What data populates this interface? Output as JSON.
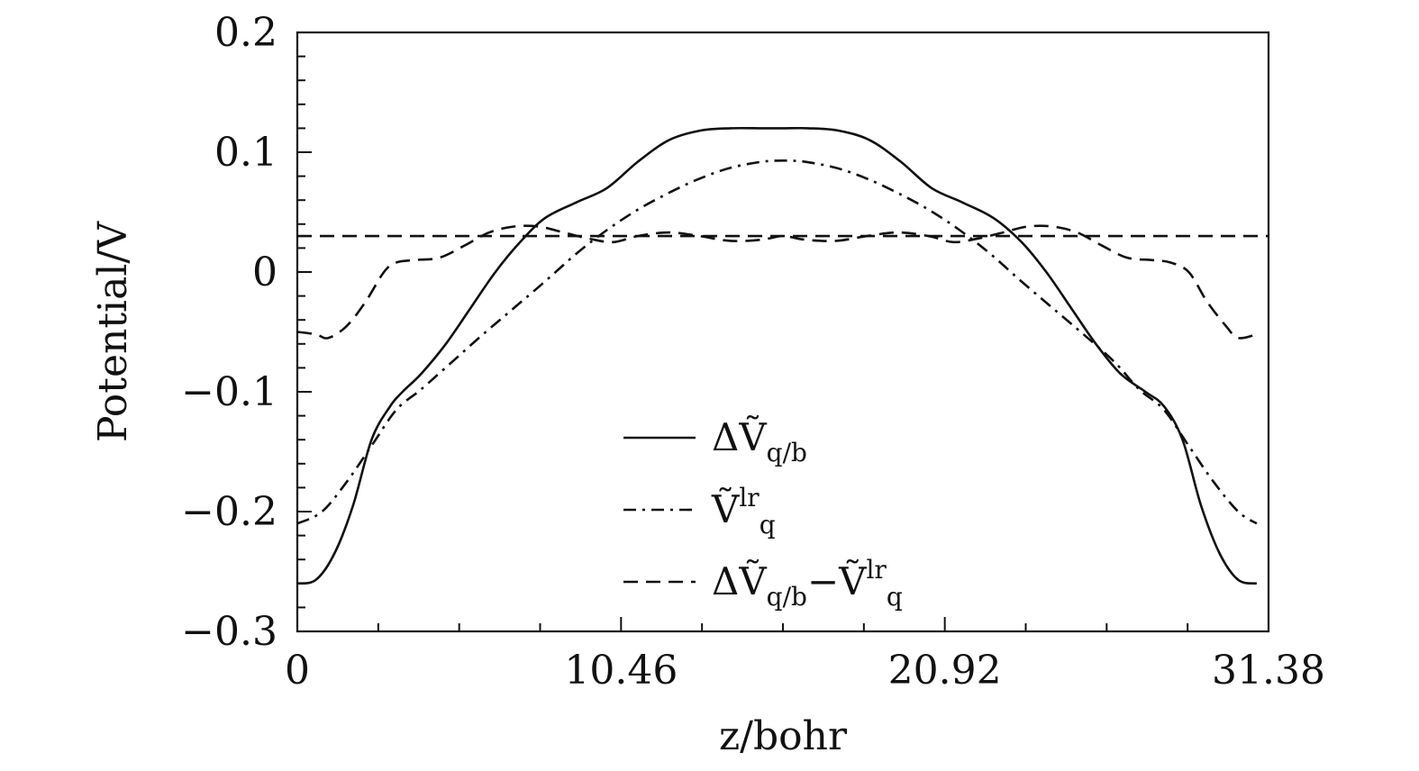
{
  "chart_data": {
    "type": "line",
    "xlabel": "z/bohr",
    "ylabel": "Potential/V",
    "xlim": [
      0,
      31.38
    ],
    "ylim": [
      -0.3,
      0.2
    ],
    "x_ticks": [
      0,
      10.46,
      20.92,
      31.38
    ],
    "x_tick_labels": [
      "0",
      "10.46",
      "20.92",
      "31.38"
    ],
    "y_ticks": [
      -0.3,
      -0.2,
      -0.1,
      0,
      0.1,
      0.2
    ],
    "y_tick_labels": [
      "−0.3",
      "−0.2",
      "−0.1",
      "0",
      "0.1",
      "0.2"
    ],
    "grid": false,
    "legend_position": "bottom-center",
    "series": [
      {
        "name": "ΔṼ_q/b",
        "style": "solid",
        "x": [
          0,
          0.6,
          1.2,
          1.8,
          2.4,
          3.0,
          3.4,
          4.0,
          4.8,
          5.6,
          6.4,
          7.2,
          8.0,
          9.0,
          10.0,
          11.0,
          12.0,
          13.0,
          14.0,
          15.0,
          15.69,
          16.5,
          17.5,
          18.5,
          19.5,
          20.5,
          21.5,
          22.5,
          23.4,
          24.2,
          25.0,
          25.8,
          26.6,
          27.4,
          28.0,
          28.6,
          29.2,
          29.8,
          30.4,
          31.0
        ],
        "y": [
          -0.26,
          -0.257,
          -0.235,
          -0.195,
          -0.14,
          -0.112,
          -0.1,
          -0.085,
          -0.06,
          -0.03,
          0.0,
          0.025,
          0.045,
          0.058,
          0.07,
          0.092,
          0.11,
          0.118,
          0.12,
          0.12,
          0.12,
          0.12,
          0.118,
          0.11,
          0.092,
          0.07,
          0.058,
          0.045,
          0.025,
          0.0,
          -0.03,
          -0.06,
          -0.085,
          -0.1,
          -0.112,
          -0.14,
          -0.195,
          -0.235,
          -0.257,
          -0.26
        ]
      },
      {
        "name": "Ṽ_q^lr",
        "style": "dashdot",
        "x": [
          0,
          0.8,
          1.6,
          2.4,
          3.2,
          4.0,
          5.0,
          6.0,
          7.0,
          8.0,
          9.0,
          10.0,
          11.0,
          12.0,
          13.0,
          14.0,
          15.0,
          15.69,
          16.4,
          17.4,
          18.4,
          19.4,
          20.4,
          21.4,
          22.4,
          23.4,
          24.4,
          25.4,
          26.4,
          27.2,
          28.0,
          28.8,
          29.6,
          30.4,
          31.0
        ],
        "y": [
          -0.21,
          -0.2,
          -0.175,
          -0.145,
          -0.115,
          -0.098,
          -0.075,
          -0.052,
          -0.03,
          -0.008,
          0.015,
          0.035,
          0.052,
          0.066,
          0.078,
          0.087,
          0.092,
          0.093,
          0.092,
          0.087,
          0.078,
          0.066,
          0.052,
          0.035,
          0.015,
          -0.008,
          -0.03,
          -0.052,
          -0.075,
          -0.098,
          -0.115,
          -0.145,
          -0.175,
          -0.2,
          -0.21
        ]
      },
      {
        "name": "ΔṼ_q/b − Ṽ_q^lr",
        "style": "dashed",
        "x": [
          0,
          0.6,
          1.0,
          1.6,
          2.2,
          2.8,
          3.2,
          3.8,
          4.6,
          5.4,
          6.2,
          7.0,
          7.8,
          8.6,
          9.4,
          10.2,
          11.0,
          12.0,
          13.0,
          14.0,
          15.0,
          15.69,
          16.4,
          17.4,
          18.4,
          19.4,
          20.4,
          21.2,
          22.0,
          22.8,
          23.6,
          24.4,
          25.2,
          26.0,
          26.8,
          27.6,
          28.2,
          28.8,
          29.4,
          30.0,
          30.4,
          31.0
        ],
        "y": [
          -0.05,
          -0.052,
          -0.055,
          -0.045,
          -0.025,
          0.0,
          0.008,
          0.01,
          0.012,
          0.022,
          0.033,
          0.038,
          0.038,
          0.033,
          0.028,
          0.025,
          0.03,
          0.033,
          0.03,
          0.026,
          0.027,
          0.03,
          0.027,
          0.026,
          0.03,
          0.033,
          0.03,
          0.025,
          0.028,
          0.033,
          0.038,
          0.038,
          0.033,
          0.022,
          0.012,
          0.01,
          0.008,
          0.0,
          -0.025,
          -0.045,
          -0.055,
          -0.052
        ]
      },
      {
        "name": "",
        "style": "dashed",
        "x": [
          0,
          31.38
        ],
        "y": [
          0.03,
          0.03
        ]
      }
    ],
    "legend": [
      {
        "style": "solid",
        "main": "ΔṼ",
        "sub": "q/b",
        "sup": ""
      },
      {
        "style": "dashdot",
        "main": "Ṽ",
        "sub": "q",
        "sup": "lr"
      },
      {
        "style": "dashed",
        "main": "ΔṼ",
        "sub": "q/b",
        "sup": "",
        "minus": "−",
        "main2": "Ṽ",
        "sub2": "q",
        "sup2": "lr"
      }
    ]
  }
}
